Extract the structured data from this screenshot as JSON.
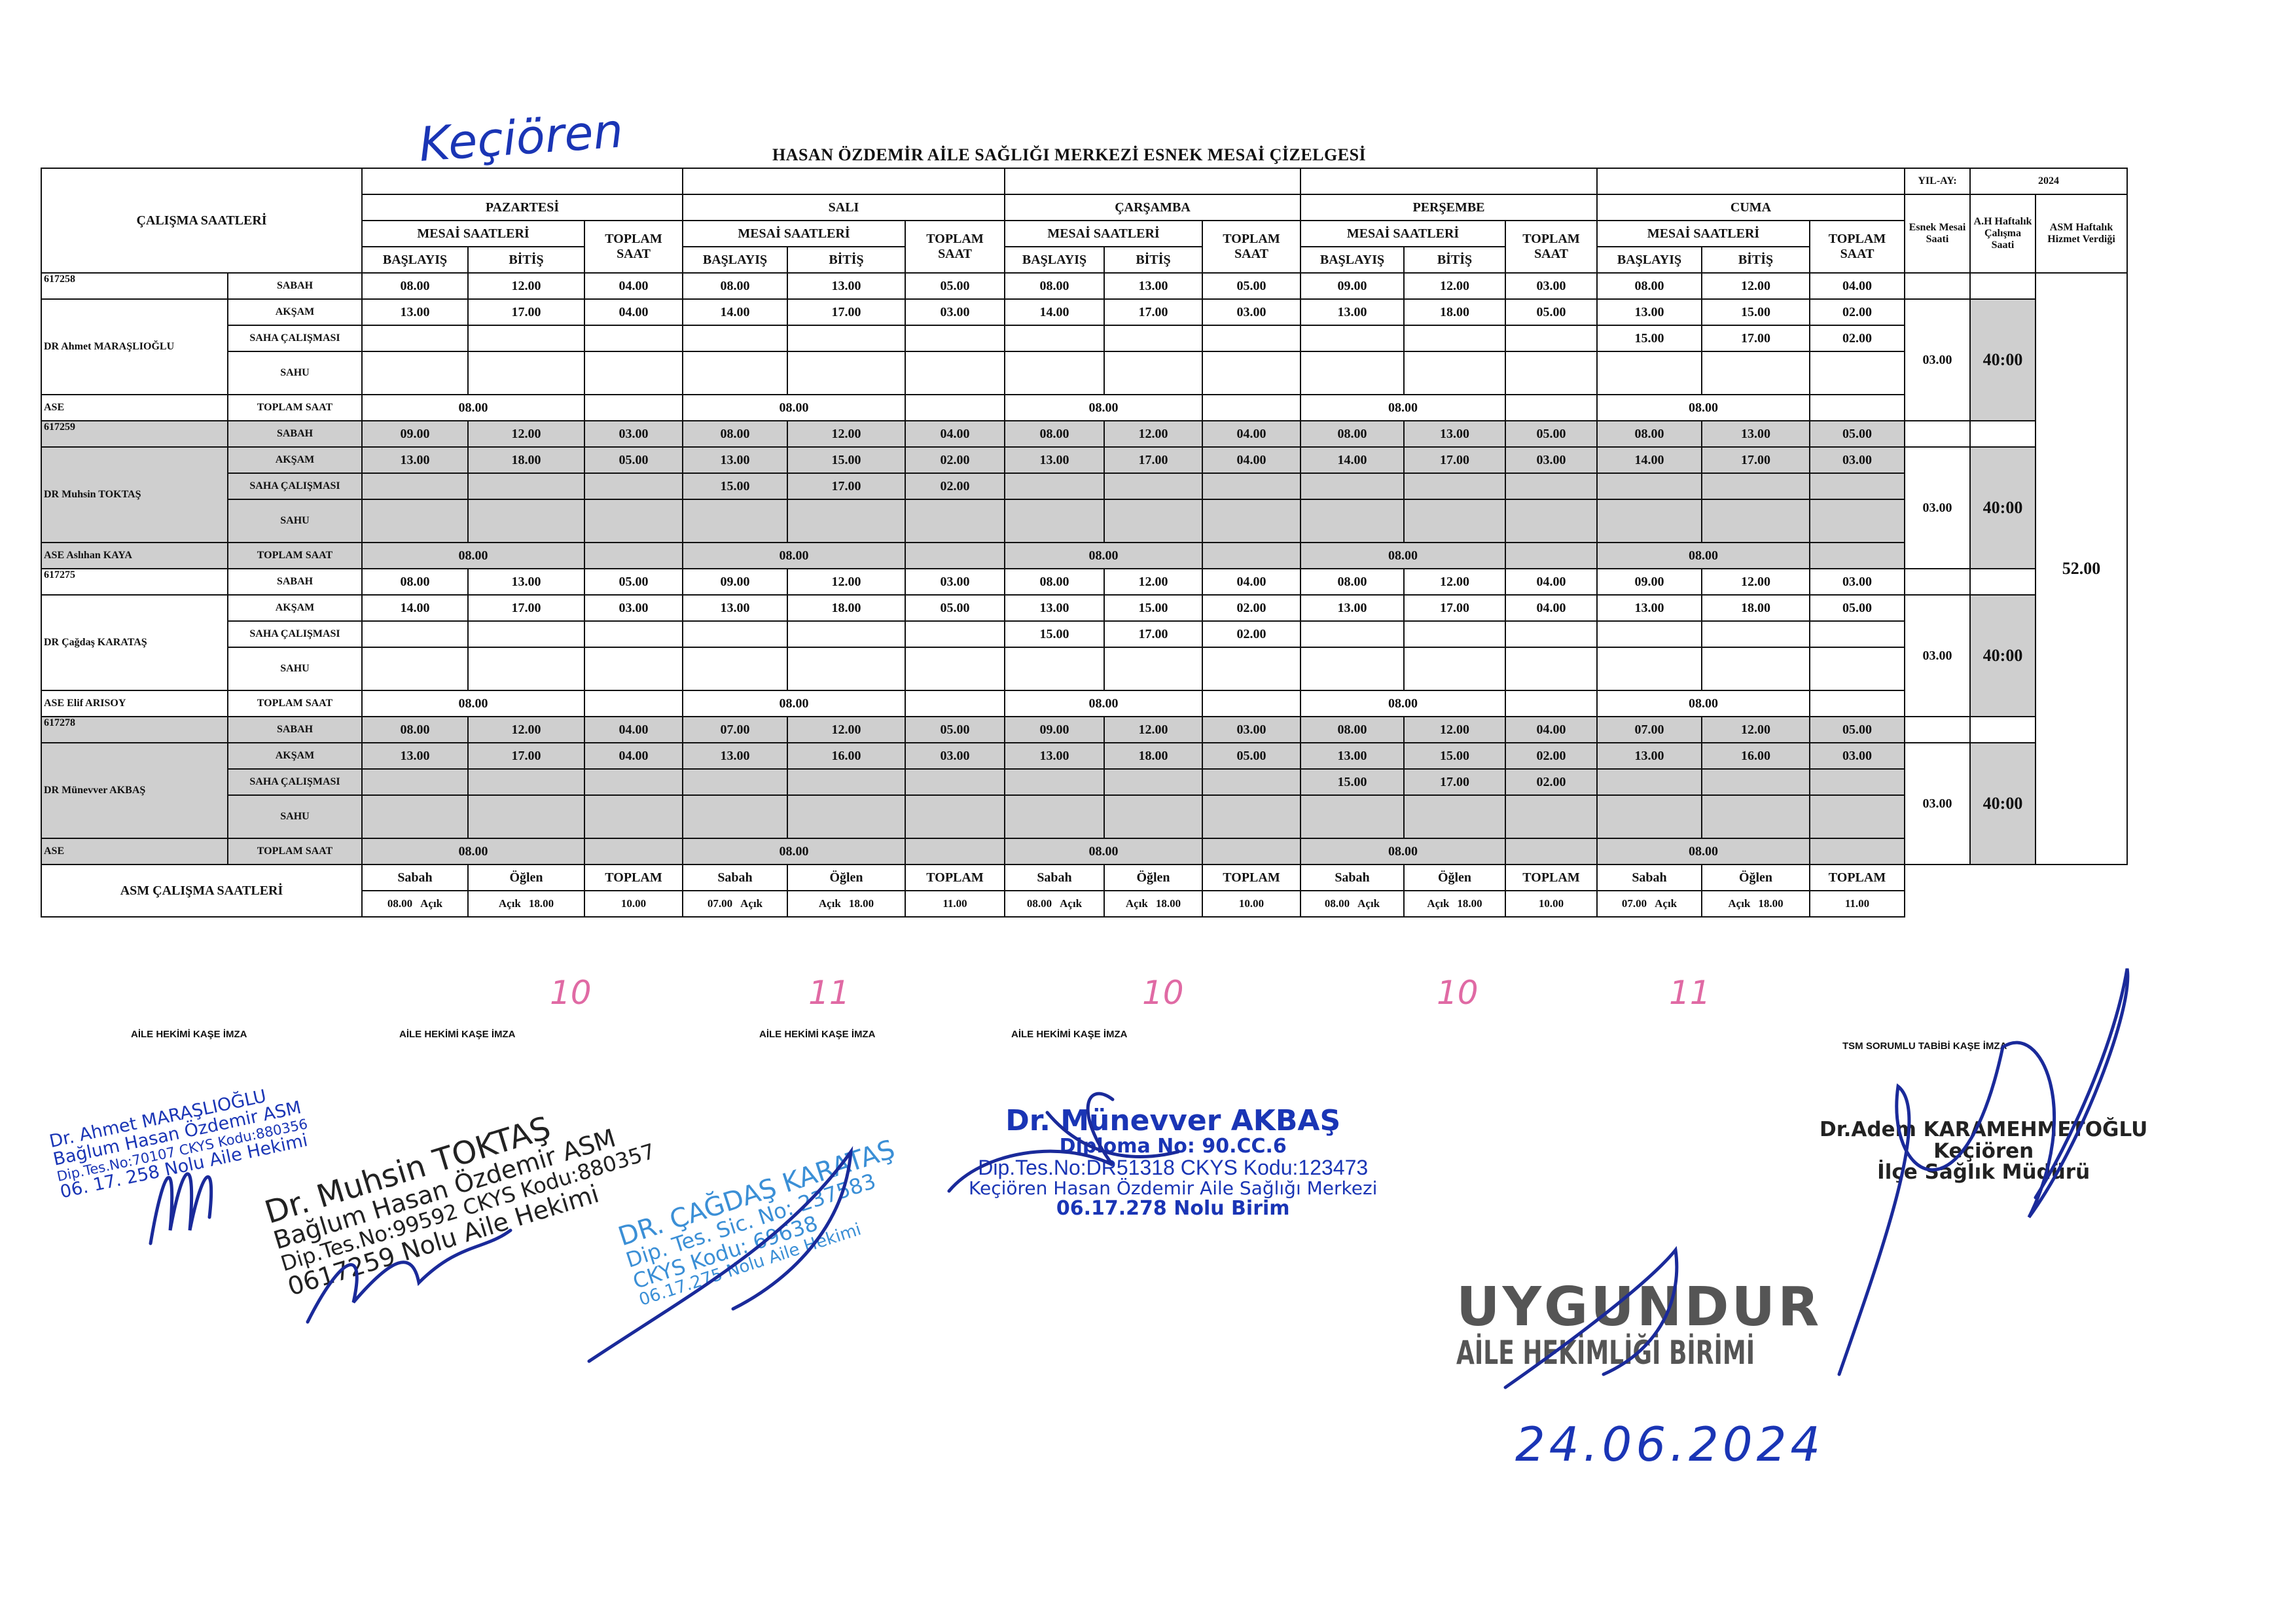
{
  "handwritten_place": "Keçiören",
  "title": "HASAN ÖZDEMİR AİLE SAĞLIĞI MERKEZİ ESNEK MESAİ ÇİZELGESİ",
  "labels": {
    "calisma_saatleri": "ÇALIŞMA SAATLERİ",
    "mesai_saatleri": "MESAİ SAATLERİ",
    "baslayis": "BAŞLAYIŞ",
    "bitis": "BİTİŞ",
    "toplam_saat_header": "TOPLAM SAAT",
    "yil_ay": "YIL-AY:",
    "year": "2024",
    "esnek_mesai": "Esnek Mesai Saati",
    "ah_haftalik": "A.H Haftalık Çalışma Saati",
    "asm_haftalik": "ASM Haftalık Hizmet Verdiği",
    "sabah": "SABAH",
    "aksam": "AKŞAM",
    "saha": "SAHA ÇALIŞMASI",
    "sahu": "SAHU",
    "toplam_saat": "TOPLAM SAAT",
    "asm_calisma_saatleri": "ASM ÇALIŞMA SAATLERİ",
    "sabah_lc": "Sabah",
    "oglen": "Öğlen",
    "toplam": "TOPLAM",
    "acik": "Açık"
  },
  "days": [
    "PAZARTESİ",
    "SALI",
    "ÇARŞAMBA",
    "PERŞEMBE",
    "CUMA"
  ],
  "asm_weekly": "52.00",
  "doctors": [
    {
      "id": "617258",
      "name": "DR Ahmet MARAŞLIOĞLU",
      "ase": "ASE",
      "esnek": "03.00",
      "weekly": "40:00",
      "day_totals": [
        "08.00",
        "08.00",
        "08.00",
        "08.00",
        "08.00"
      ],
      "sabah": [
        [
          "08.00",
          "12.00",
          "04.00"
        ],
        [
          "08.00",
          "13.00",
          "05.00"
        ],
        [
          "08.00",
          "13.00",
          "05.00"
        ],
        [
          "09.00",
          "12.00",
          "03.00"
        ],
        [
          "08.00",
          "12.00",
          "04.00"
        ]
      ],
      "aksam": [
        [
          "13.00",
          "17.00",
          "04.00"
        ],
        [
          "14.00",
          "17.00",
          "03.00"
        ],
        [
          "14.00",
          "17.00",
          "03.00"
        ],
        [
          "13.00",
          "18.00",
          "05.00"
        ],
        [
          "13.00",
          "15.00",
          "02.00"
        ]
      ],
      "saha": [
        [
          "",
          "",
          ""
        ],
        [
          "",
          "",
          ""
        ],
        [
          "",
          "",
          ""
        ],
        [
          "",
          "",
          ""
        ],
        [
          "15.00",
          "17.00",
          "02.00"
        ]
      ]
    },
    {
      "id": "617259",
      "name": "DR Muhsin TOKTAŞ",
      "ase": "ASE Aslıhan KAYA",
      "esnek": "03.00",
      "weekly": "40:00",
      "day_totals": [
        "08.00",
        "08.00",
        "08.00",
        "08.00",
        "08.00"
      ],
      "sabah": [
        [
          "09.00",
          "12.00",
          "03.00"
        ],
        [
          "08.00",
          "12.00",
          "04.00"
        ],
        [
          "08.00",
          "12.00",
          "04.00"
        ],
        [
          "08.00",
          "13.00",
          "05.00"
        ],
        [
          "08.00",
          "13.00",
          "05.00"
        ]
      ],
      "aksam": [
        [
          "13.00",
          "18.00",
          "05.00"
        ],
        [
          "13.00",
          "15.00",
          "02.00"
        ],
        [
          "13.00",
          "17.00",
          "04.00"
        ],
        [
          "14.00",
          "17.00",
          "03.00"
        ],
        [
          "14.00",
          "17.00",
          "03.00"
        ]
      ],
      "saha": [
        [
          "",
          "",
          ""
        ],
        [
          "15.00",
          "17.00",
          "02.00"
        ],
        [
          "",
          "",
          ""
        ],
        [
          "",
          "",
          ""
        ],
        [
          "",
          "",
          ""
        ]
      ]
    },
    {
      "id": "617275",
      "name": "DR Çağdaş KARATAŞ",
      "ase": "ASE Elif ARISOY",
      "esnek": "03.00",
      "weekly": "40:00",
      "day_totals": [
        "08.00",
        "08.00",
        "08.00",
        "08.00",
        "08.00"
      ],
      "sabah": [
        [
          "08.00",
          "13.00",
          "05.00"
        ],
        [
          "09.00",
          "12.00",
          "03.00"
        ],
        [
          "08.00",
          "12.00",
          "04.00"
        ],
        [
          "08.00",
          "12.00",
          "04.00"
        ],
        [
          "09.00",
          "12.00",
          "03.00"
        ]
      ],
      "aksam": [
        [
          "14.00",
          "17.00",
          "03.00"
        ],
        [
          "13.00",
          "18.00",
          "05.00"
        ],
        [
          "13.00",
          "15.00",
          "02.00"
        ],
        [
          "13.00",
          "17.00",
          "04.00"
        ],
        [
          "13.00",
          "18.00",
          "05.00"
        ]
      ],
      "saha": [
        [
          "",
          "",
          ""
        ],
        [
          "",
          "",
          ""
        ],
        [
          "15.00",
          "17.00",
          "02.00"
        ],
        [
          "",
          "",
          ""
        ],
        [
          "",
          "",
          ""
        ]
      ]
    },
    {
      "id": "617278",
      "name": "DR Münevver AKBAŞ",
      "ase": "ASE",
      "esnek": "03.00",
      "weekly": "40:00",
      "day_totals": [
        "08.00",
        "08.00",
        "08.00",
        "08.00",
        "08.00"
      ],
      "sabah": [
        [
          "08.00",
          "12.00",
          "04.00"
        ],
        [
          "07.00",
          "12.00",
          "05.00"
        ],
        [
          "09.00",
          "12.00",
          "03.00"
        ],
        [
          "08.00",
          "12.00",
          "04.00"
        ],
        [
          "07.00",
          "12.00",
          "05.00"
        ]
      ],
      "aksam": [
        [
          "13.00",
          "17.00",
          "04.00"
        ],
        [
          "13.00",
          "16.00",
          "03.00"
        ],
        [
          "13.00",
          "18.00",
          "05.00"
        ],
        [
          "13.00",
          "15.00",
          "02.00"
        ],
        [
          "13.00",
          "16.00",
          "03.00"
        ]
      ],
      "saha": [
        [
          "",
          "",
          ""
        ],
        [
          "",
          "",
          ""
        ],
        [
          "",
          "",
          ""
        ],
        [
          "15.00",
          "17.00",
          "02.00"
        ],
        [
          "",
          "",
          ""
        ]
      ]
    }
  ],
  "asm_hours": [
    {
      "sabah": "08.00",
      "oglen": "18.00",
      "toplam": "10.00",
      "handwritten": "10"
    },
    {
      "sabah": "07.00",
      "oglen": "18.00",
      "toplam": "11.00",
      "handwritten": "11"
    },
    {
      "sabah": "08.00",
      "oglen": "18.00",
      "toplam": "10.00",
      "handwritten": "10"
    },
    {
      "sabah": "08.00",
      "oglen": "18.00",
      "toplam": "10.00",
      "handwritten": "10"
    },
    {
      "sabah": "07.00",
      "oglen": "18.00",
      "toplam": "11.00",
      "handwritten": "11"
    }
  ],
  "signature_labels": {
    "aile_hekimi": "AİLE HEKİMİ KAŞE İMZA",
    "tsm": "TSM SORUMLU TABİBİ KAŞE İMZA"
  },
  "stamps": {
    "maraslioglu": [
      "Dr. Ahmet MARAŞLIOĞLU",
      "Bağlum Hasan Özdemir ASM",
      "Dip.Tes.No:70107 CKYS Kodu:880356",
      "06. 17. 258 Nolu Aile Hekimi"
    ],
    "toktas": [
      "Dr. Muhsin TOKTAŞ",
      "Bağlum Hasan Özdemir ASM",
      "Dip.Tes.No:99592 CKYS Kodu:880357",
      "0617259 Nolu Aile Hekimi"
    ],
    "karatas": [
      "DR. ÇAĞDAŞ KARATAŞ",
      "Dip. Tes. Sic. No: 237583",
      "CKYS Kodu: 69638",
      "06.17.275 Nolu Aile Hekimi"
    ],
    "akbas": [
      "Dr. Münevver AKBAŞ",
      "Diploma No: 90.CC.6",
      "Dip.Tes.No:DR51318 CKYS Kodu:123473",
      "Keçiören Hasan Özdemir Aile Sağlığı Merkezi",
      "06.17.278 Nolu Birim"
    ],
    "karamehmetoglu": [
      "Dr.Adem KARAMEHMETOĞLU",
      "Keçiören",
      "İlçe Sağlık Müdürü"
    ],
    "uygundur": [
      "UYGUNDUR",
      "AİLE HEKİMLİĞİ BİRİMİ"
    ],
    "date": "24.06.2024"
  }
}
